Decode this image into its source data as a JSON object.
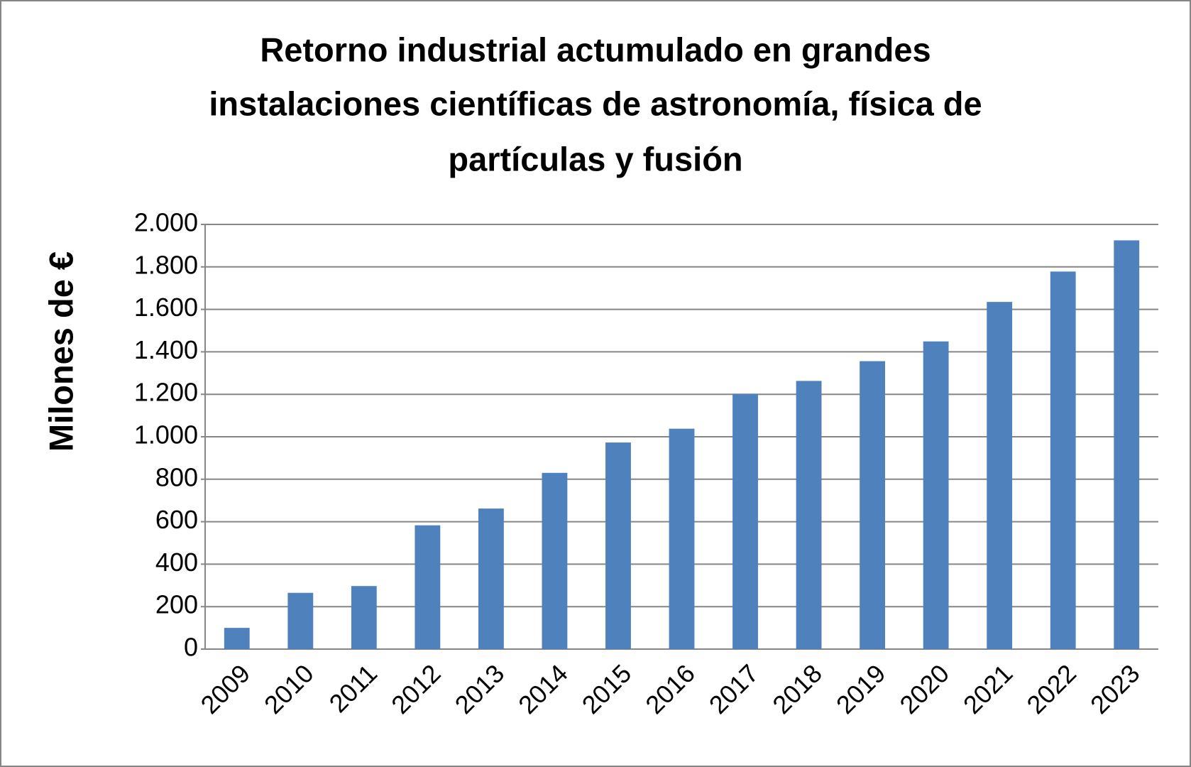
{
  "chart_data": {
    "type": "bar",
    "title": [
      "Retorno industrial actumulado en grandes",
      "instalaciones científicas de astronomía, física de",
      "partículas y fusión"
    ],
    "y_label": "Milones de €",
    "categories": [
      "2009",
      "2010",
      "2011",
      "2012",
      "2013",
      "2014",
      "2015",
      "2016",
      "2017",
      "2018",
      "2019",
      "2020",
      "2021",
      "2022",
      "2023"
    ],
    "values": [
      100,
      265,
      297,
      583,
      662,
      830,
      973,
      1038,
      1202,
      1263,
      1356,
      1449,
      1635,
      1778,
      1925
    ],
    "color": "#4f81bd",
    "ylim": [
      0,
      2000
    ],
    "yticks": [
      0,
      200,
      400,
      600,
      800,
      {
        "value": 1000,
        "label": "1.000"
      },
      {
        "value": 1200,
        "label": "1.200"
      },
      {
        "value": 1400,
        "label": "1.400"
      },
      {
        "value": 1600,
        "label": "1.600"
      },
      {
        "value": 1800,
        "label": "1.800"
      },
      {
        "value": 2000,
        "label": "2.000"
      }
    ],
    "grid": true
  }
}
